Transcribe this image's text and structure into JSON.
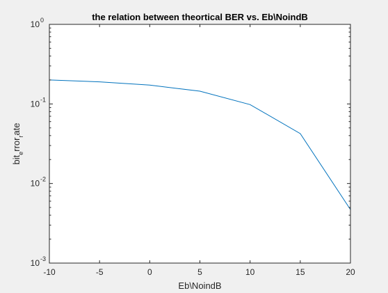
{
  "chart_data": {
    "type": "line",
    "title": "the relation between theortical BER vs. Eb\\NoindB",
    "xlabel": "Eb\\NoindB",
    "ylabel": {
      "parts": [
        {
          "text": "bit",
          "sub": false
        },
        {
          "text": "e",
          "sub": true
        },
        {
          "text": "rror",
          "sub": false
        },
        {
          "text": "r",
          "sub": true
        },
        {
          "text": "ate",
          "sub": false
        }
      ]
    },
    "x": [
      -10,
      -5,
      0,
      5,
      10,
      15,
      20
    ],
    "series": [
      {
        "values": [
          0.2002,
          0.1895,
          0.1724,
          0.1447,
          0.0981,
          0.0424,
          0.0047
        ],
        "color": "#0072bd"
      }
    ],
    "xlim": [
      -10,
      20
    ],
    "ylim": [
      0.001,
      1
    ],
    "yscale": "log",
    "xticks": [
      -10,
      -5,
      0,
      5,
      10,
      15,
      20
    ],
    "yticks": [
      {
        "base": "10",
        "exp": "-3",
        "value": 0.001
      },
      {
        "base": "10",
        "exp": "-2",
        "value": 0.01
      },
      {
        "base": "10",
        "exp": "-1",
        "value": 0.1
      },
      {
        "base": "10",
        "exp": "0",
        "value": 1
      }
    ],
    "grid": false,
    "box": true
  }
}
